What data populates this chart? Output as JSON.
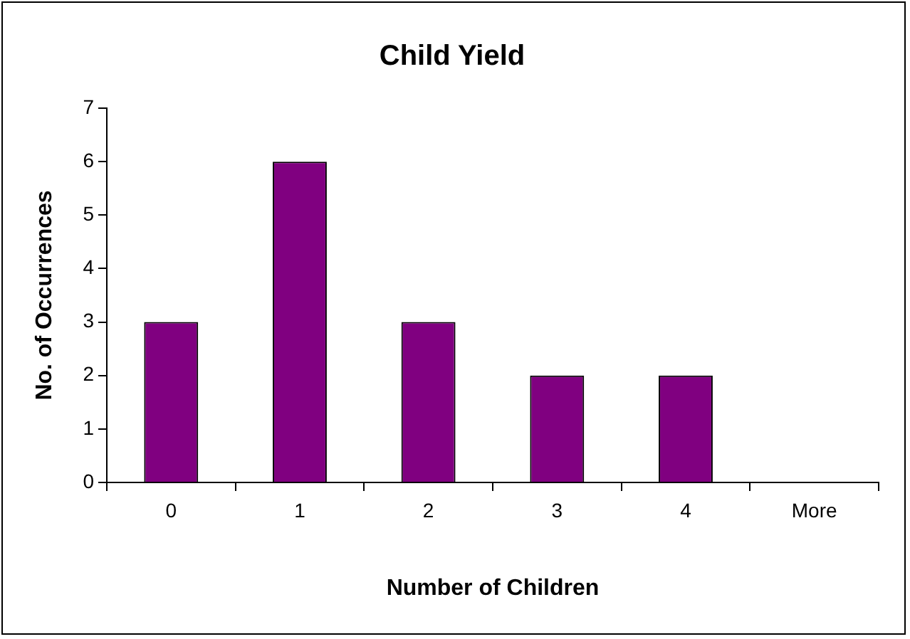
{
  "chart_data": {
    "type": "bar",
    "title": "Child Yield",
    "xlabel": "Number of Children",
    "ylabel": "No. of Occurrences",
    "categories": [
      "0",
      "1",
      "2",
      "3",
      "4",
      "More"
    ],
    "values": [
      3,
      6,
      3,
      2,
      2,
      0
    ],
    "color": "#800080",
    "ylim": [
      0,
      7
    ],
    "yticks": [
      0,
      1,
      2,
      3,
      4,
      5,
      6,
      7
    ],
    "grid": false,
    "legend": false
  }
}
